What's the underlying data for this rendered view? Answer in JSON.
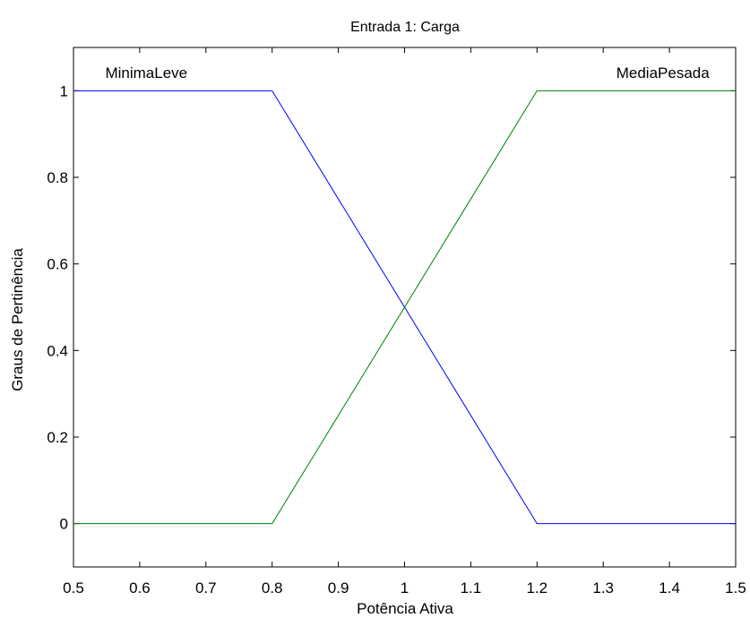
{
  "chart_data": {
    "type": "line",
    "title": "Entrada 1: Carga",
    "xlabel": "Potência Ativa",
    "ylabel": "Graus de Pertinência",
    "xlim": [
      0.5,
      1.5
    ],
    "ylim": [
      -0.1,
      1.1
    ],
    "xticks": [
      0.5,
      0.6,
      0.7,
      0.8,
      0.9,
      1,
      1.1,
      1.2,
      1.3,
      1.4,
      1.5
    ],
    "xtick_labels": [
      "0.5",
      "0.6",
      "0.7",
      "0.8",
      "0.9",
      "1",
      "1.1",
      "1.2",
      "1.3",
      "1.4",
      "1.5"
    ],
    "yticks": [
      0,
      0.2,
      0.4,
      0.6,
      0.8,
      1
    ],
    "ytick_labels": [
      "0",
      "0.2",
      "0.4",
      "0.6",
      "0.8",
      "1"
    ],
    "grid": false,
    "series": [
      {
        "name": "MinimaLeve",
        "color": "#0000ff",
        "x": [
          0.5,
          0.8,
          1.2,
          1.5
        ],
        "y": [
          1,
          1,
          0,
          0
        ],
        "label_at": [
          0.61,
          1.03
        ]
      },
      {
        "name": "MediaPesada",
        "color": "#008000",
        "x": [
          0.5,
          0.8,
          1.2,
          1.5
        ],
        "y": [
          0,
          0,
          1,
          1
        ],
        "label_at": [
          1.39,
          1.03
        ]
      }
    ]
  }
}
